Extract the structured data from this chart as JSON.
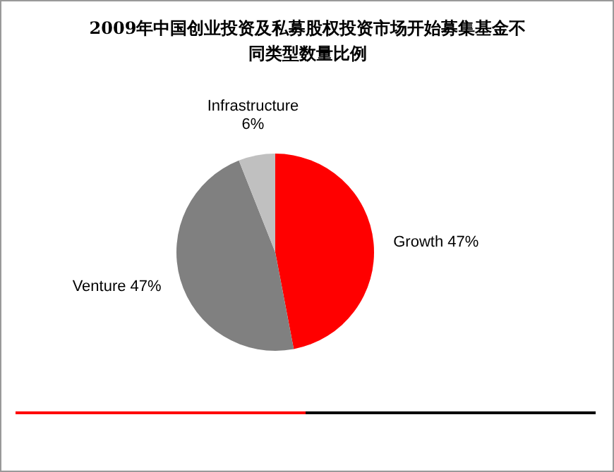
{
  "chart_data": {
    "type": "pie",
    "title": "2009年中国创业投资及私募股权投资市场开始募集基金不同类型数量比例",
    "categories": [
      "Growth",
      "Venture",
      "Infrastructure"
    ],
    "values": [
      47,
      47,
      6
    ],
    "value_labels": [
      "47%",
      "47%",
      "6%"
    ],
    "colors": [
      "#ff0000",
      "#808080",
      "#c0c0c0"
    ]
  }
}
